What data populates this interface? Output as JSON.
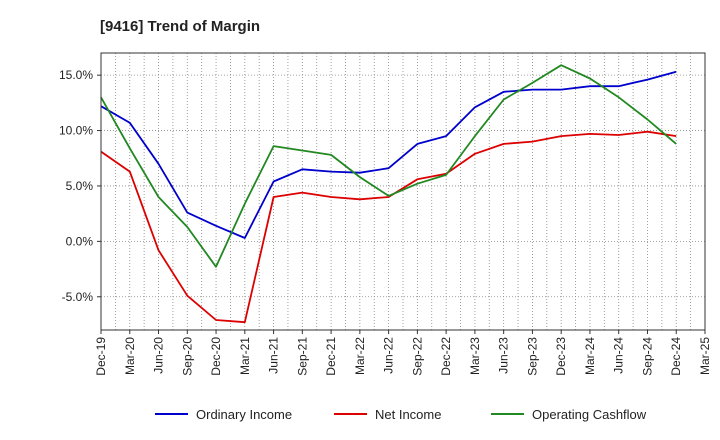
{
  "chart_data": {
    "type": "line",
    "title": "[9416]  Trend of Margin",
    "xlabel": "",
    "ylabel": "",
    "ylim": [
      -8,
      17
    ],
    "yticks": [
      -5,
      0,
      5,
      10,
      15
    ],
    "ytick_labels": [
      "-5.0%",
      "0.0%",
      "5.0%",
      "10.0%",
      "15.0%"
    ],
    "grid": true,
    "legend_position": "bottom",
    "x": [
      "Dec-19",
      "Mar-20",
      "Jun-20",
      "Sep-20",
      "Dec-20",
      "Mar-21",
      "Jun-21",
      "Sep-21",
      "Dec-21",
      "Mar-22",
      "Jun-22",
      "Sep-22",
      "Dec-22",
      "Mar-23",
      "Jun-23",
      "Sep-23",
      "Dec-23",
      "Mar-24",
      "Jun-24",
      "Sep-24",
      "Dec-24",
      "Mar-25"
    ],
    "series": [
      {
        "name": "Ordinary Income",
        "color": "#0000cc",
        "values": [
          12.2,
          10.7,
          7.0,
          2.6,
          1.4,
          0.3,
          5.4,
          6.5,
          6.3,
          6.2,
          6.6,
          8.8,
          9.5,
          12.1,
          13.5,
          13.7,
          13.7,
          14.0,
          14.0,
          14.6,
          15.3,
          null
        ]
      },
      {
        "name": "Net Income",
        "color": "#dd0000",
        "values": [
          8.1,
          6.3,
          -0.8,
          -4.9,
          -7.1,
          -7.3,
          4.0,
          4.4,
          4.0,
          3.8,
          4.0,
          5.6,
          6.1,
          7.9,
          8.8,
          9.0,
          9.5,
          9.7,
          9.6,
          9.9,
          9.5,
          null
        ]
      },
      {
        "name": "Operating Cashflow",
        "color": "#228822",
        "values": [
          13.0,
          8.4,
          4.0,
          1.3,
          -2.3,
          3.4,
          8.6,
          8.2,
          7.8,
          5.8,
          4.1,
          5.2,
          6.0,
          9.5,
          12.8,
          14.3,
          15.9,
          14.7,
          13.0,
          11.0,
          8.8,
          null
        ]
      }
    ]
  }
}
